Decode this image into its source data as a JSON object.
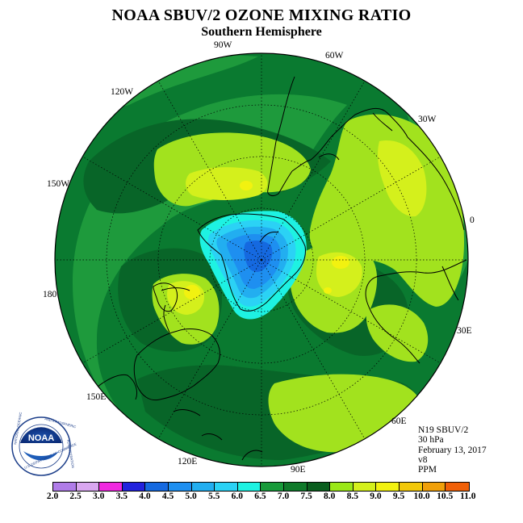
{
  "title": "NOAA SBUV/2 OZONE MIXING RATIO",
  "subtitle": "Southern Hemisphere",
  "longitude_labels": [
    "90W",
    "60W",
    "30W",
    "0",
    "30E",
    "60E",
    "90E",
    "120E",
    "150E",
    "180",
    "150W",
    "120W"
  ],
  "info": {
    "satellite": "N19 SBUV/2",
    "level": "30 hPa",
    "date": "February 13, 2017",
    "version": "v8",
    "units": "PPM"
  },
  "colorbar": {
    "ticks": [
      "2.0",
      "2.5",
      "3.0",
      "3.5",
      "4.0",
      "4.5",
      "5.0",
      "5.5",
      "6.0",
      "6.5",
      "7.0",
      "7.5",
      "8.0",
      "8.5",
      "9.0",
      "9.5",
      "10.0",
      "10.5",
      "11.0"
    ],
    "colors": [
      "#b07ce8",
      "#d9a7f0",
      "#f028e0",
      "#2222dd",
      "#1569e0",
      "#1e8ff0",
      "#22aef0",
      "#2bd2f5",
      "#1ef2e2",
      "#189a3a",
      "#0f7a2a",
      "#0a5e1e",
      "#9ae818",
      "#d4f01c",
      "#f2f210",
      "#f2c80a",
      "#f0a00a",
      "#f06008",
      "#e80000",
      "#8a5030"
    ]
  },
  "logo": {
    "text": "NOAA",
    "icon": "noaa-logo-icon"
  }
}
